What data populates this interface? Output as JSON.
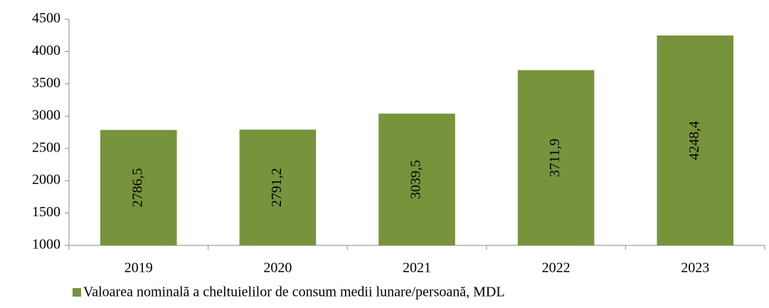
{
  "chart_data": {
    "type": "bar",
    "categories": [
      "2019",
      "2020",
      "2021",
      "2022",
      "2023"
    ],
    "series": [
      {
        "name": "Valoarea nominală a cheltuielilor de consum medii lunare/persoană, MDL",
        "color": "#77933c",
        "values": [
          2786.5,
          2791.2,
          3039.5,
          3711.9,
          4248.4
        ],
        "value_labels": [
          "2786,5",
          "2791,2",
          "3039,5",
          "3711,9",
          "4248,4"
        ]
      }
    ],
    "ylim": [
      1000,
      4500
    ],
    "yticks": [
      1000,
      1500,
      2000,
      2500,
      3000,
      3500,
      4000,
      4500
    ],
    "legend": "bottom"
  }
}
